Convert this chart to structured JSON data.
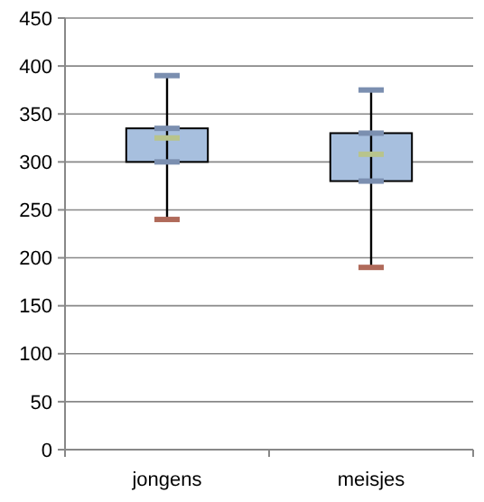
{
  "chart_data": {
    "type": "box",
    "categories": [
      "jongens",
      "meisjes"
    ],
    "boxes": [
      {
        "low": 240,
        "q1": 300,
        "median": 325,
        "q3": 335,
        "high": 390
      },
      {
        "low": 190,
        "q1": 280,
        "median": 308,
        "q3": 330,
        "high": 375
      }
    ],
    "color": "#a7bfde",
    "ylim": [
      0,
      450
    ],
    "yticks": [
      0,
      50,
      100,
      150,
      200,
      250,
      300,
      350,
      400,
      450
    ],
    "grid": "y"
  }
}
